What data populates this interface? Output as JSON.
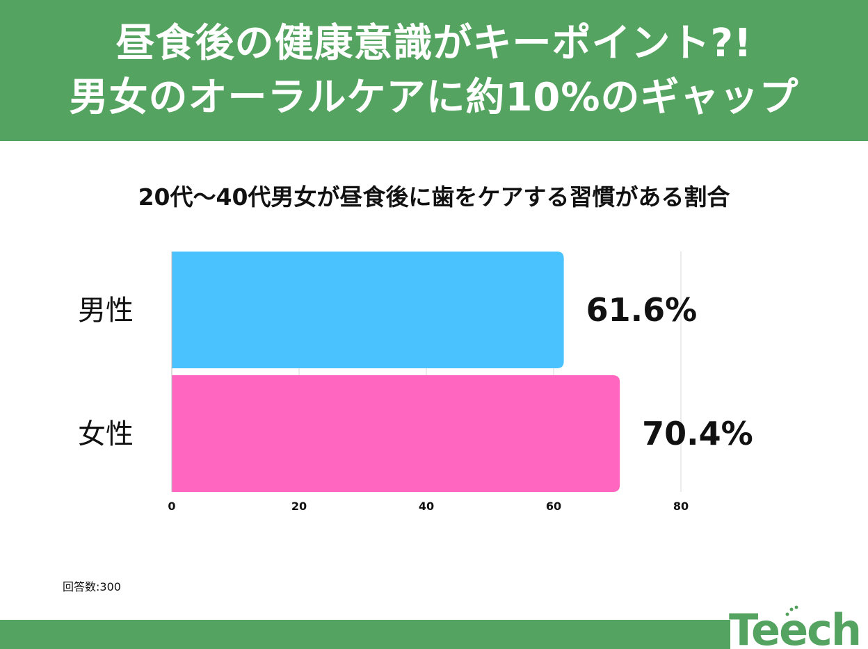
{
  "header": {
    "line1": "昼食後の健康意識がキーポイント?!",
    "line2": "男女のオーラルケアに約10%のギャップ"
  },
  "note": "回答数:300",
  "logo": {
    "text": "Teech",
    "color": "#55a360"
  },
  "chart_data": {
    "type": "bar",
    "orientation": "horizontal",
    "title": "20代〜40代男女が昼食後に歯をケアする習慣がある割合",
    "categories": [
      "男性",
      "女性"
    ],
    "values": [
      61.6,
      70.4
    ],
    "value_labels": [
      "61.6%",
      "70.4%"
    ],
    "colors": [
      "#4ac2fd",
      "#ff66c0"
    ],
    "xlim": [
      0,
      80
    ],
    "xticks": [
      0,
      20,
      40,
      60,
      80
    ],
    "xlabel": "",
    "ylabel": "",
    "grid": true,
    "legend": "none"
  }
}
